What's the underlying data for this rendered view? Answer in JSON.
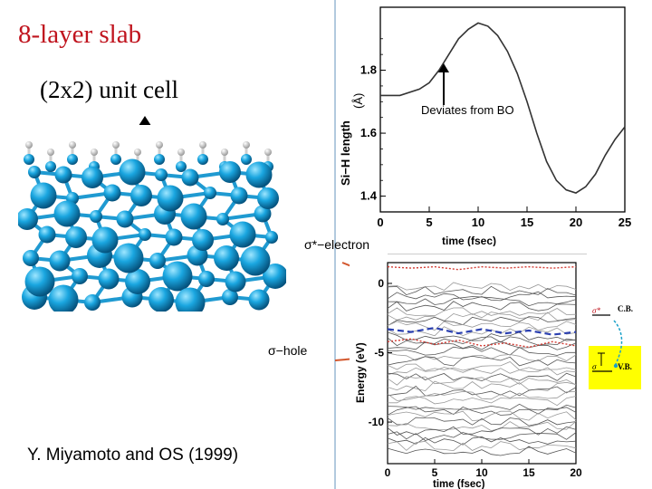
{
  "slide": {
    "title": "8-layer slab",
    "unit_cell_label": "(2x2) unit cell",
    "credit": "Y. Miyamoto and OS (1999)",
    "sigma_star_label": "σ*−electron",
    "sigma_hole_label": "σ−hole",
    "annotation": "Deviates from BO"
  },
  "chart_data": [
    {
      "type": "line",
      "xlabel": "time (fsec)",
      "ylabel": "Si−H length",
      "ylabel_unit": "(Å)",
      "xlim": [
        0,
        25
      ],
      "ylim": [
        1.35,
        2.0
      ],
      "x_ticks": [
        "0",
        "5",
        "10",
        "15",
        "20",
        "25"
      ],
      "y_ticks": [
        "1.4",
        "1.6",
        "1.8"
      ],
      "grid": false,
      "series": [
        {
          "x": [
            0,
            2,
            4,
            5,
            6,
            7,
            8,
            9,
            10,
            11,
            12,
            13,
            14,
            15,
            16,
            17,
            18,
            19,
            20,
            21,
            22,
            23,
            24,
            25
          ],
          "values": [
            1.72,
            1.72,
            1.74,
            1.76,
            1.8,
            1.85,
            1.9,
            1.93,
            1.95,
            1.94,
            1.91,
            1.86,
            1.79,
            1.7,
            1.6,
            1.51,
            1.45,
            1.42,
            1.41,
            1.43,
            1.47,
            1.53,
            1.58,
            1.62
          ]
        }
      ]
    },
    {
      "type": "line",
      "xlabel": "time (fsec)",
      "ylabel": "Energy (eV)",
      "xlim": [
        0,
        20
      ],
      "ylim": [
        -13,
        1.5
      ],
      "x_ticks": [
        "0",
        "5",
        "10",
        "15",
        "20"
      ],
      "y_ticks": [
        "0",
        "-5",
        "-10"
      ],
      "highlighted_levels": [
        {
          "style": "dotted",
          "color": "#d23a32",
          "values": [
            1.2,
            1.1,
            1.2,
            1.0,
            1.2,
            1.1,
            1.2,
            1.1,
            1.2
          ]
        },
        {
          "style": "dashed",
          "color": "#2a3fb0",
          "values": [
            -3.3,
            -3.5,
            -3.2,
            -3.6,
            -3.3,
            -3.6,
            -3.4,
            -3.7,
            -3.5
          ]
        },
        {
          "style": "dotted",
          "color": "#d23a32",
          "values": [
            -4.2,
            -4.0,
            -4.4,
            -4.1,
            -4.5,
            -4.3,
            -4.6,
            -4.2,
            -4.5
          ]
        }
      ]
    }
  ],
  "inset": {
    "cb_label": "C.B.",
    "vb_label": "V.B.",
    "sigma_star": "σ*",
    "sigma": "σ",
    "highlight_color": "#ffff00"
  }
}
